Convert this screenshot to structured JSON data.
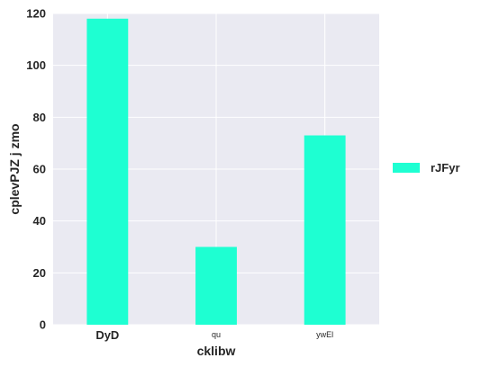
{
  "chart_data": {
    "type": "bar",
    "categories": [
      "DyD",
      "qu",
      "ywEl"
    ],
    "series": [
      {
        "name": "rJFyr",
        "values": [
          118,
          30,
          73
        ],
        "color": "#1effd2"
      }
    ],
    "xlabel": "cklibw",
    "ylabel": "cplevPJZ j zmo",
    "ylim": [
      0,
      120
    ],
    "yticks": [
      0,
      20,
      40,
      60,
      80,
      100,
      120
    ],
    "grid": true,
    "legend_position": "right",
    "background_color": "#eaeaf2",
    "grid_color": "#ffffff"
  }
}
